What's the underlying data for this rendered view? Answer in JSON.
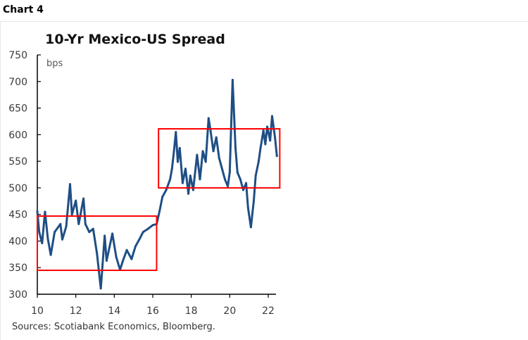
{
  "header": {
    "chart_label": "Chart 4"
  },
  "chart_data": {
    "type": "line",
    "title": "10-Yr Mexico-US Spread",
    "ylabel": "bps",
    "xlabel": "",
    "source": "Sources: Scotiabank Economics, Bloomberg.",
    "xlim": [
      10,
      22.45
    ],
    "ylim": [
      300,
      750
    ],
    "x_ticks": [
      10,
      12,
      14,
      16,
      18,
      20,
      22
    ],
    "x_tick_labels": [
      "10",
      "12",
      "14",
      "16",
      "18",
      "20",
      "22"
    ],
    "y_ticks": [
      300,
      350,
      400,
      450,
      500,
      550,
      600,
      650,
      700,
      750
    ],
    "y_tick_labels": [
      "300",
      "350",
      "400",
      "450",
      "500",
      "550",
      "600",
      "650",
      "700",
      "750"
    ],
    "grid": false,
    "legend": "none",
    "series": [
      {
        "name": "10-Yr Mexico-US Spread",
        "color": "#1f4e85",
        "x": [
          10.0,
          10.1,
          10.25,
          10.4,
          10.55,
          10.7,
          10.9,
          11.2,
          11.3,
          11.5,
          11.7,
          11.8,
          12.0,
          12.15,
          12.4,
          12.5,
          12.7,
          12.9,
          13.1,
          13.3,
          13.5,
          13.6,
          13.8,
          13.9,
          14.1,
          14.3,
          14.45,
          14.65,
          14.9,
          15.1,
          15.3,
          15.5,
          15.75,
          16.0,
          16.2,
          16.35,
          16.5,
          16.7,
          16.9,
          17.0,
          17.1,
          17.2,
          17.3,
          17.4,
          17.55,
          17.7,
          17.85,
          17.95,
          18.1,
          18.3,
          18.45,
          18.6,
          18.75,
          18.9,
          19.0,
          19.15,
          19.3,
          19.45,
          19.6,
          19.75,
          19.9,
          20.0,
          20.15,
          20.3,
          20.4,
          20.55,
          20.7,
          20.85,
          20.95,
          21.1,
          21.25,
          21.35,
          21.5,
          21.6,
          21.75,
          21.85,
          21.95,
          22.1,
          22.2,
          22.35,
          22.45
        ],
        "values": [
          456,
          417,
          396,
          455,
          404,
          374,
          417,
          432,
          403,
          427,
          507,
          450,
          476,
          432,
          480,
          432,
          417,
          423,
          377,
          311,
          410,
          363,
          397,
          414,
          370,
          346,
          363,
          383,
          366,
          390,
          403,
          417,
          423,
          430,
          432,
          456,
          483,
          496,
          516,
          536,
          569,
          605,
          549,
          575,
          509,
          536,
          489,
          523,
          496,
          562,
          516,
          569,
          549,
          631,
          608,
          569,
          595,
          556,
          536,
          516,
          503,
          529,
          703,
          575,
          529,
          516,
          496,
          509,
          463,
          426,
          476,
          523,
          549,
          575,
          608,
          582,
          615,
          589,
          635,
          595,
          560
        ]
      }
    ],
    "annotations": [
      {
        "type": "rectangle",
        "label": "range-box-2010-2016",
        "x_range": [
          10.0,
          16.2
        ],
        "y_range": [
          345,
          447
        ],
        "color": "#ff0000"
      },
      {
        "type": "rectangle",
        "label": "range-box-2016-2022",
        "x_range": [
          16.3,
          22.6
        ],
        "y_range": [
          500,
          611
        ],
        "color": "#ff0000"
      }
    ]
  }
}
